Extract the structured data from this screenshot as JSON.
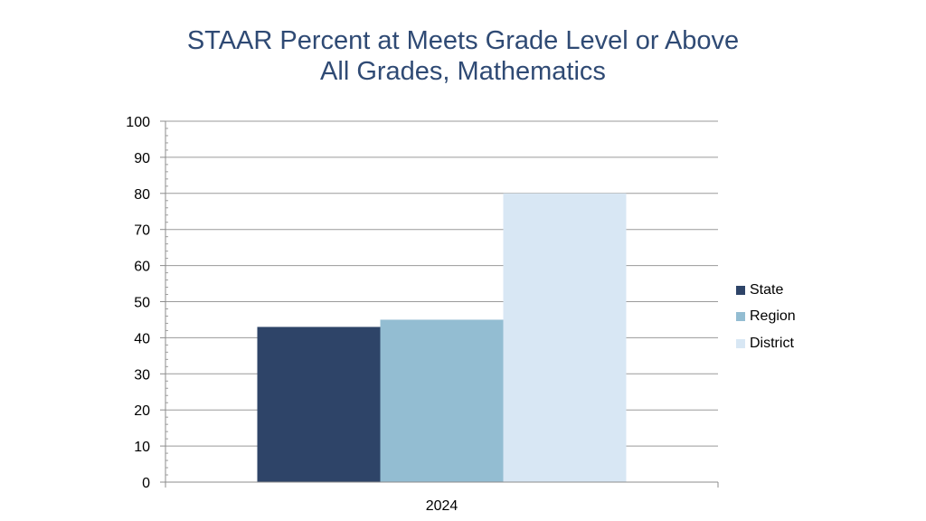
{
  "chart_data": {
    "type": "bar",
    "title": [
      "STAAR Percent at Meets Grade Level or Above",
      "All Grades, Mathematics"
    ],
    "categories": [
      "2024"
    ],
    "series": [
      {
        "name": "State",
        "values": [
          43
        ],
        "color": "#2e4468"
      },
      {
        "name": "Region",
        "values": [
          45
        ],
        "color": "#93bdd2"
      },
      {
        "name": "District",
        "values": [
          80
        ],
        "color": "#d8e7f4"
      }
    ],
    "ylim": [
      0,
      100
    ],
    "yticks": [
      0,
      10,
      20,
      30,
      40,
      50,
      60,
      70,
      80,
      90,
      100
    ],
    "grid": true,
    "legend": "right"
  }
}
